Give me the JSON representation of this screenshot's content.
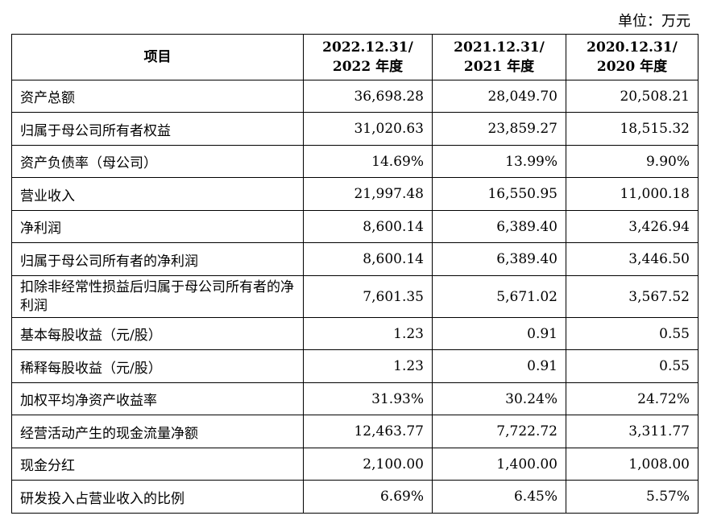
{
  "unit_label": "单位：万元",
  "headers": [
    "项目",
    "2022.12.31/\n2022 年度",
    "2021.12.31/\n2021 年度",
    "2020.12.31/\n2020 年度"
  ],
  "rows": [
    [
      "资产总额",
      "36,698.28",
      "28,049.70",
      "20,508.21"
    ],
    [
      "归属于母公司所有者权益",
      "31,020.63",
      "23,859.27",
      "18,515.32"
    ],
    [
      "资产负债率（母公司）",
      "14.69%",
      "13.99%",
      "9.90%"
    ],
    [
      "营业收入",
      "21,997.48",
      "16,550.95",
      "11,000.18"
    ],
    [
      "净利润",
      "8,600.14",
      "6,389.40",
      "3,426.94"
    ],
    [
      "归属于母公司所有者的净利润",
      "8,600.14",
      "6,389.40",
      "3,446.50"
    ],
    [
      "扣除非经常性损益后归属于母公司所有者的净利润",
      "7,601.35",
      "5,671.02",
      "3,567.52"
    ],
    [
      "基本每股收益（元/股）",
      "1.23",
      "0.91",
      "0.55"
    ],
    [
      "稀释每股收益（元/股）",
      "1.23",
      "0.91",
      "0.55"
    ],
    [
      "加权平均净资产收益率",
      "31.93%",
      "30.24%",
      "24.72%"
    ],
    [
      "经营活动产生的现金流量净额",
      "12,463.77",
      "7,722.72",
      "3,311.77"
    ],
    [
      "现金分红",
      "2,100.00",
      "1,400.00",
      "1,008.00"
    ],
    [
      "研发投入占营业收入的比例",
      "6.69%",
      "6.45%",
      "5.57%"
    ]
  ]
}
